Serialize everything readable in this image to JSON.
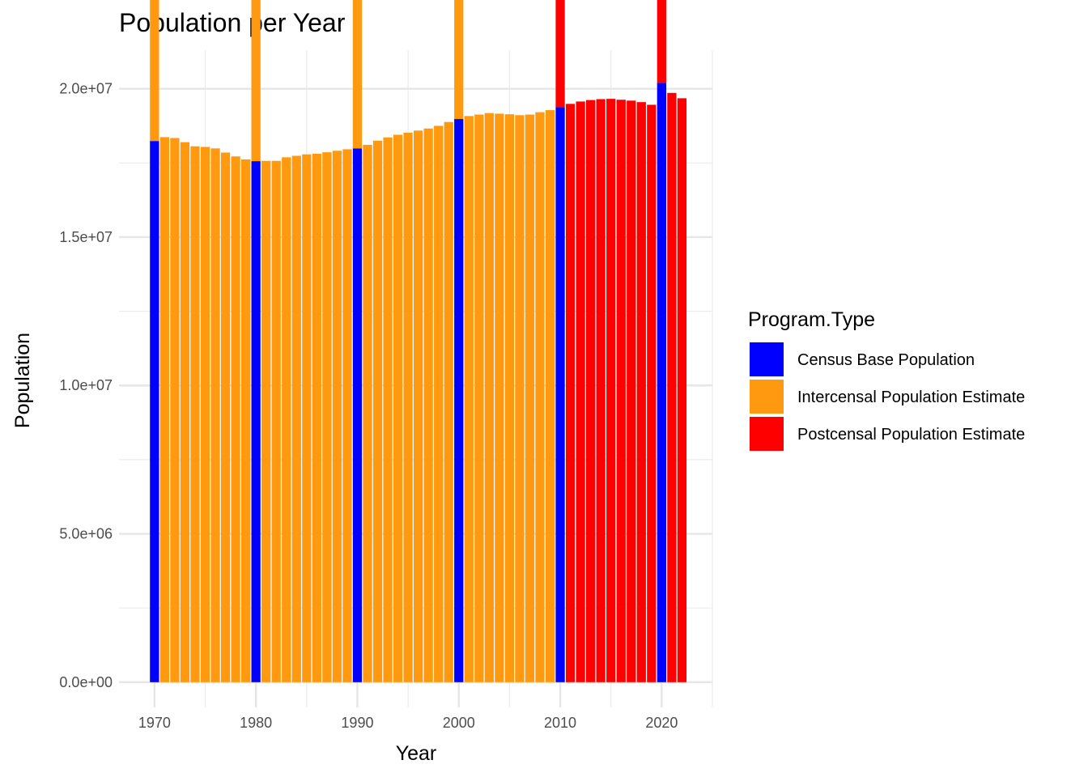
{
  "chart_data": {
    "type": "bar",
    "title": "Population per Year",
    "xlabel": "Year",
    "ylabel": "Population",
    "x_ticks": [
      "1970",
      "1980",
      "1990",
      "2000",
      "2010",
      "2020"
    ],
    "y_ticks": [
      "0.0e+00",
      "5.0e+06",
      "1.0e+07",
      "1.5e+07",
      "2.0e+07"
    ],
    "y_tick_values": [
      0,
      5000000,
      10000000,
      15000000,
      20000000
    ],
    "xlim": [
      1966.5,
      2025
    ],
    "ylim": [
      -850000,
      21300000
    ],
    "grid": true,
    "legend": {
      "title": "Program.Type",
      "position": "right",
      "entries": [
        {
          "name": "Census Base Population",
          "color": "#0000FF"
        },
        {
          "name": "Intercensal Population Estimate",
          "color": "#FF9910"
        },
        {
          "name": "Postcensal Population Estimate",
          "color": "#FF0000"
        }
      ]
    },
    "series": [
      {
        "name": "Census Base Population",
        "color": "#0000FF",
        "points": [
          {
            "x": 1970,
            "y": 18240000
          },
          {
            "x": 1980,
            "y": 17560000
          },
          {
            "x": 1990,
            "y": 17990000
          },
          {
            "x": 2000,
            "y": 18980000
          },
          {
            "x": 2010,
            "y": 19380000
          },
          {
            "x": 2020,
            "y": 20200000
          }
        ]
      },
      {
        "name": "Intercensal Population Estimate",
        "color": "#FF9910",
        "points": [
          {
            "x": 1970,
            "y": 18240000
          },
          {
            "x": 1971,
            "y": 18370000
          },
          {
            "x": 1972,
            "y": 18340000
          },
          {
            "x": 1973,
            "y": 18200000
          },
          {
            "x": 1974,
            "y": 18060000
          },
          {
            "x": 1975,
            "y": 18040000
          },
          {
            "x": 1976,
            "y": 17990000
          },
          {
            "x": 1977,
            "y": 17850000
          },
          {
            "x": 1978,
            "y": 17720000
          },
          {
            "x": 1979,
            "y": 17620000
          },
          {
            "x": 1980,
            "y": 17560000
          },
          {
            "x": 1981,
            "y": 17570000
          },
          {
            "x": 1982,
            "y": 17570000
          },
          {
            "x": 1983,
            "y": 17690000
          },
          {
            "x": 1984,
            "y": 17740000
          },
          {
            "x": 1985,
            "y": 17790000
          },
          {
            "x": 1986,
            "y": 17810000
          },
          {
            "x": 1987,
            "y": 17860000
          },
          {
            "x": 1988,
            "y": 17910000
          },
          {
            "x": 1989,
            "y": 17960000
          },
          {
            "x": 1990,
            "y": 17990000
          },
          {
            "x": 1991,
            "y": 18110000
          },
          {
            "x": 1992,
            "y": 18250000
          },
          {
            "x": 1993,
            "y": 18360000
          },
          {
            "x": 1994,
            "y": 18450000
          },
          {
            "x": 1995,
            "y": 18520000
          },
          {
            "x": 1996,
            "y": 18590000
          },
          {
            "x": 1997,
            "y": 18660000
          },
          {
            "x": 1998,
            "y": 18750000
          },
          {
            "x": 1999,
            "y": 18880000
          },
          {
            "x": 2000,
            "y": 18980000
          },
          {
            "x": 2001,
            "y": 19080000
          },
          {
            "x": 2002,
            "y": 19130000
          },
          {
            "x": 2003,
            "y": 19180000
          },
          {
            "x": 2004,
            "y": 19160000
          },
          {
            "x": 2005,
            "y": 19140000
          },
          {
            "x": 2006,
            "y": 19110000
          },
          {
            "x": 2007,
            "y": 19130000
          },
          {
            "x": 2008,
            "y": 19210000
          },
          {
            "x": 2009,
            "y": 19280000
          }
        ]
      },
      {
        "name": "Postcensal Population Estimate",
        "color": "#FF0000",
        "points": [
          {
            "x": 2010,
            "y": 19400000
          },
          {
            "x": 2011,
            "y": 19490000
          },
          {
            "x": 2012,
            "y": 19570000
          },
          {
            "x": 2013,
            "y": 19620000
          },
          {
            "x": 2014,
            "y": 19650000
          },
          {
            "x": 2015,
            "y": 19660000
          },
          {
            "x": 2016,
            "y": 19630000
          },
          {
            "x": 2017,
            "y": 19600000
          },
          {
            "x": 2018,
            "y": 19550000
          },
          {
            "x": 2019,
            "y": 19460000
          },
          {
            "x": 2020,
            "y": 20120000
          },
          {
            "x": 2021,
            "y": 19860000
          },
          {
            "x": 2022,
            "y": 19680000
          }
        ]
      }
    ]
  }
}
